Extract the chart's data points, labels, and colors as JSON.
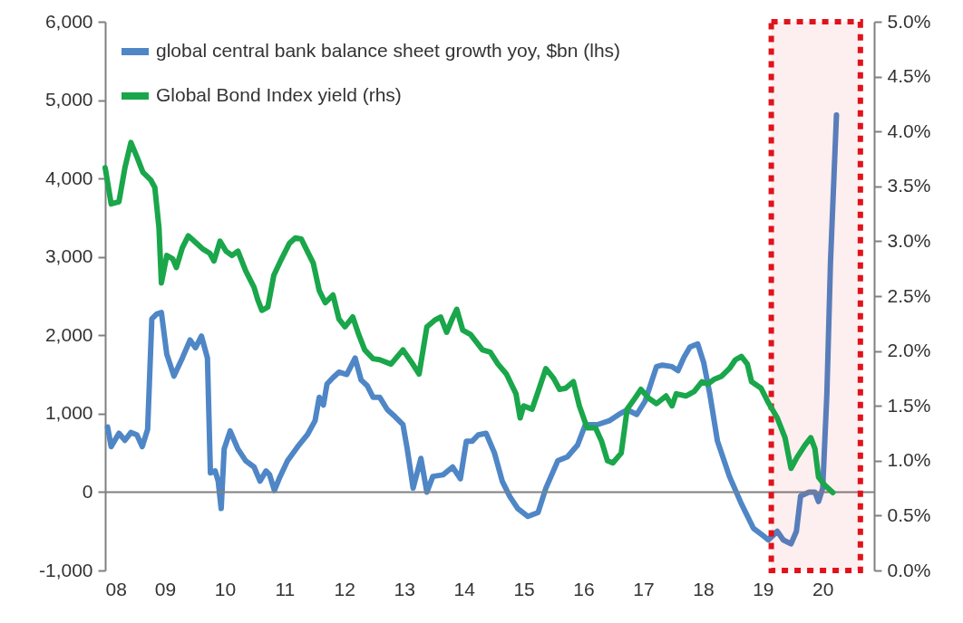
{
  "chart_data": {
    "type": "line",
    "legend": "top left",
    "xlim": [
      2008,
      2020.86
    ],
    "xticks": [
      {
        "value": 2008,
        "label": "08"
      },
      {
        "value": 2009,
        "label": "09"
      },
      {
        "value": 2010,
        "label": "10"
      },
      {
        "value": 2011,
        "label": "11"
      },
      {
        "value": 2012,
        "label": "12"
      },
      {
        "value": 2013,
        "label": "13"
      },
      {
        "value": 2014,
        "label": "14"
      },
      {
        "value": 2015,
        "label": "15"
      },
      {
        "value": 2016,
        "label": "16"
      },
      {
        "value": 2017,
        "label": "17"
      },
      {
        "value": 2018,
        "label": "18"
      },
      {
        "value": 2019,
        "label": "19"
      },
      {
        "value": 2020,
        "label": "20"
      }
    ],
    "ylim": [
      -1000,
      6000
    ],
    "yticks": [
      {
        "value": -1000,
        "label": "-1,000"
      },
      {
        "value": 0,
        "label": "0"
      },
      {
        "value": 1000,
        "label": "1,000"
      },
      {
        "value": 2000,
        "label": "2,000"
      },
      {
        "value": 3000,
        "label": "3,000"
      },
      {
        "value": 4000,
        "label": "4,000"
      },
      {
        "value": 5000,
        "label": "5,000"
      },
      {
        "value": 6000,
        "label": "6,000"
      }
    ],
    "y2lim": [
      0,
      5
    ],
    "y2ticks": [
      {
        "value": 0,
        "label": "0.0%"
      },
      {
        "value": 0.5,
        "label": "0.5%"
      },
      {
        "value": 1,
        "label": "1.0%"
      },
      {
        "value": 1.5,
        "label": "1.5%"
      },
      {
        "value": 2,
        "label": "2.0%"
      },
      {
        "value": 2.5,
        "label": "2.5%"
      },
      {
        "value": 3,
        "label": "3.0%"
      },
      {
        "value": 3.5,
        "label": "3.5%"
      },
      {
        "value": 4,
        "label": "4.0%"
      },
      {
        "value": 4.5,
        "label": "4.5%"
      },
      {
        "value": 5,
        "label": "5.0%"
      }
    ],
    "ref_lines": [
      {
        "axis": "y",
        "value": 0,
        "color": "#808080"
      }
    ],
    "bands": [
      {
        "axis": "x",
        "from": 2019.14,
        "to": 2020.63,
        "color": "#e0121b"
      }
    ],
    "series": [
      {
        "name": "global central bank balance sheet growth yoy, $bn (lhs)",
        "color": "#4f86c6",
        "x": [
          2008.04,
          2008.1,
          2008.23,
          2008.33,
          2008.43,
          2008.53,
          2008.62,
          2008.71,
          2008.78,
          2008.86,
          2008.94,
          2009.03,
          2009.15,
          2009.29,
          2009.42,
          2009.51,
          2009.61,
          2009.71,
          2009.76,
          2009.84,
          2009.89,
          2009.94,
          2009.99,
          2010.09,
          2010.22,
          2010.35,
          2010.49,
          2010.59,
          2010.69,
          2010.75,
          2010.83,
          2010.92,
          2011.05,
          2011.22,
          2011.38,
          2011.51,
          2011.58,
          2011.65,
          2011.71,
          2011.81,
          2011.91,
          2012.04,
          2012.18,
          2012.28,
          2012.38,
          2012.48,
          2012.59,
          2012.72,
          2012.85,
          2012.98,
          2013.05,
          2013.15,
          2013.28,
          2013.38,
          2013.48,
          2013.65,
          2013.81,
          2013.94,
          2014.04,
          2014.14,
          2014.24,
          2014.37,
          2014.51,
          2014.64,
          2014.77,
          2014.9,
          2015.07,
          2015.24,
          2015.37,
          2015.57,
          2015.73,
          2015.9,
          2016.03,
          2016.23,
          2016.43,
          2016.59,
          2016.73,
          2016.89,
          2017.03,
          2017.22,
          2017.32,
          2017.48,
          2017.58,
          2017.68,
          2017.78,
          2017.91,
          2018.01,
          2018.11,
          2018.24,
          2018.44,
          2018.64,
          2018.84,
          2019.01,
          2019.09,
          2019.24,
          2019.34,
          2019.47,
          2019.56,
          2019.63,
          2019.77,
          2019.87,
          2019.93,
          2020.0,
          2020.07,
          2020.13,
          2020.23
        ],
        "values": [
          830,
          580,
          750,
          660,
          760,
          730,
          580,
          800,
          2210,
          2270,
          2290,
          1760,
          1480,
          1710,
          1940,
          1840,
          1990,
          1710,
          245,
          270,
          140,
          -210,
          550,
          780,
          550,
          400,
          320,
          140,
          270,
          220,
          20,
          190,
          400,
          580,
          730,
          910,
          1210,
          1110,
          1380,
          1460,
          1530,
          1500,
          1710,
          1430,
          1360,
          1210,
          1210,
          1050,
          960,
          860,
          560,
          50,
          430,
          0,
          200,
          220,
          320,
          170,
          650,
          650,
          730,
          750,
          500,
          140,
          -60,
          -210,
          -310,
          -260,
          50,
          400,
          450,
          600,
          860,
          860,
          910,
          990,
          1050,
          990,
          1160,
          1600,
          1620,
          1600,
          1550,
          1720,
          1850,
          1890,
          1650,
          1260,
          650,
          200,
          -150,
          -460,
          -560,
          -610,
          -500,
          -610,
          -660,
          -500,
          -50,
          0,
          0,
          -120,
          50,
          1260,
          2930,
          4810
        ]
      },
      {
        "name": "Global Bond Index yield (rhs)",
        "color": "#1aa64a",
        "axis": "y2",
        "x": [
          2008.0,
          2008.1,
          2008.23,
          2008.33,
          2008.43,
          2008.53,
          2008.63,
          2008.76,
          2008.83,
          2008.9,
          2008.94,
          2009.03,
          2009.13,
          2009.19,
          2009.29,
          2009.39,
          2009.53,
          2009.63,
          2009.75,
          2009.82,
          2009.92,
          2010.02,
          2010.12,
          2010.22,
          2010.35,
          2010.49,
          2010.55,
          2010.62,
          2010.72,
          2010.82,
          2010.95,
          2011.08,
          2011.18,
          2011.28,
          2011.38,
          2011.48,
          2011.58,
          2011.68,
          2011.81,
          2011.91,
          2012.01,
          2012.14,
          2012.24,
          2012.34,
          2012.48,
          2012.59,
          2012.78,
          2012.98,
          2013.12,
          2013.25,
          2013.38,
          2013.51,
          2013.61,
          2013.71,
          2013.81,
          2013.88,
          2013.98,
          2014.11,
          2014.31,
          2014.44,
          2014.57,
          2014.71,
          2014.87,
          2014.94,
          2015.0,
          2015.14,
          2015.24,
          2015.37,
          2015.5,
          2015.6,
          2015.7,
          2015.83,
          2015.93,
          2016.06,
          2016.2,
          2016.3,
          2016.4,
          2016.49,
          2016.63,
          2016.73,
          2016.86,
          2016.96,
          2017.09,
          2017.22,
          2017.38,
          2017.48,
          2017.55,
          2017.71,
          2017.85,
          2017.98,
          2018.08,
          2018.18,
          2018.31,
          2018.44,
          2018.54,
          2018.64,
          2018.74,
          2018.81,
          2018.97,
          2019.1,
          2019.24,
          2019.37,
          2019.47,
          2019.57,
          2019.7,
          2019.8,
          2019.87,
          2019.93,
          2020.03,
          2020.17
        ],
        "values": [
          3.67,
          3.34,
          3.36,
          3.67,
          3.9,
          3.77,
          3.63,
          3.56,
          3.49,
          3.12,
          2.62,
          2.87,
          2.84,
          2.76,
          2.94,
          3.05,
          2.98,
          2.93,
          2.89,
          2.82,
          3.0,
          2.91,
          2.87,
          2.91,
          2.73,
          2.58,
          2.47,
          2.37,
          2.4,
          2.69,
          2.84,
          2.98,
          3.03,
          3.02,
          2.91,
          2.8,
          2.55,
          2.44,
          2.51,
          2.29,
          2.22,
          2.31,
          2.15,
          2.01,
          1.93,
          1.92,
          1.88,
          2.01,
          1.9,
          1.79,
          2.22,
          2.28,
          2.31,
          2.17,
          2.3,
          2.38,
          2.19,
          2.15,
          2.01,
          1.99,
          1.88,
          1.79,
          1.61,
          1.39,
          1.5,
          1.47,
          1.63,
          1.84,
          1.75,
          1.65,
          1.66,
          1.72,
          1.5,
          1.3,
          1.3,
          1.18,
          1.0,
          0.98,
          1.07,
          1.47,
          1.57,
          1.65,
          1.57,
          1.52,
          1.59,
          1.5,
          1.61,
          1.59,
          1.63,
          1.72,
          1.7,
          1.74,
          1.77,
          1.84,
          1.92,
          1.95,
          1.88,
          1.72,
          1.66,
          1.52,
          1.39,
          1.21,
          0.93,
          1.03,
          1.14,
          1.21,
          1.11,
          0.85,
          0.78,
          0.71
        ]
      }
    ]
  }
}
